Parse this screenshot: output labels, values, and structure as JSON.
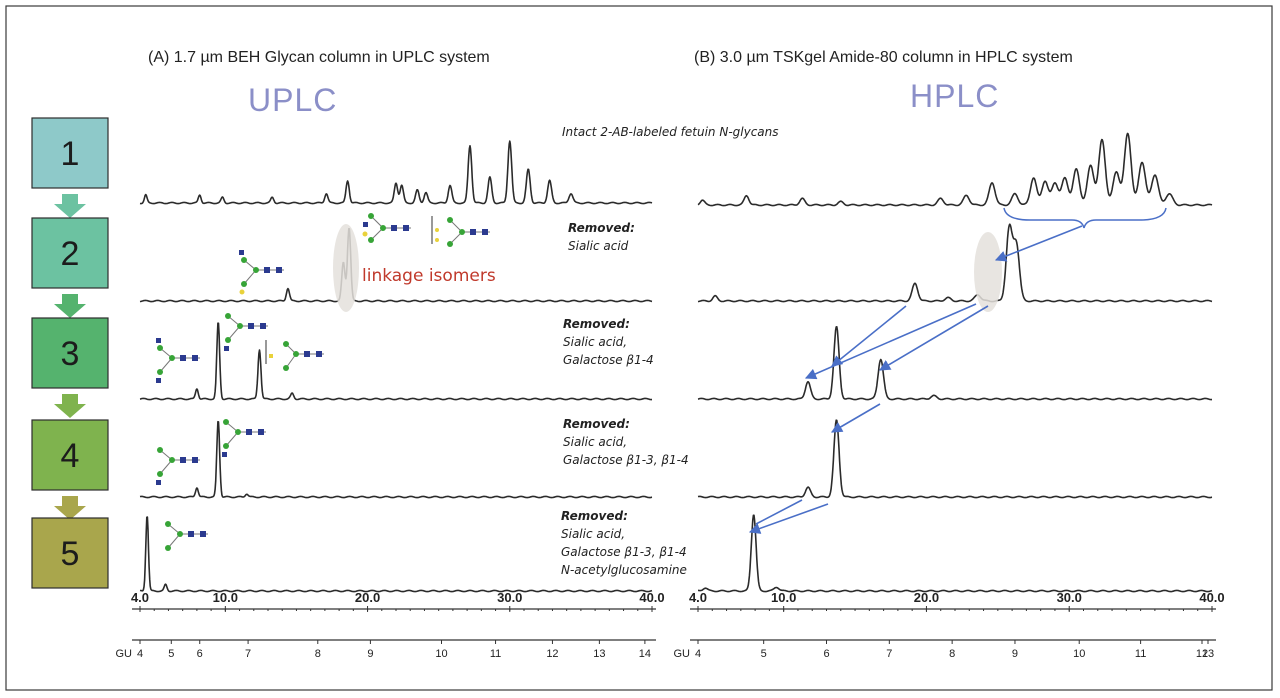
{
  "header": {
    "panel_a_title": "(A)  1.7 µm BEH Glycan column in UPLC system",
    "panel_b_title": "(B)  3.0 µm TSKgel Amide-80 column in HPLC system",
    "panel_a_label": "UPLC",
    "panel_b_label": "HPLC"
  },
  "steps": [
    {
      "number": "1",
      "color": "#8ec9c9"
    },
    {
      "number": "2",
      "color": "#6cc2a1"
    },
    {
      "number": "3",
      "color": "#55b36e"
    },
    {
      "number": "4",
      "color": "#7fb34e"
    },
    {
      "number": "5",
      "color": "#a9a64c"
    }
  ],
  "annotations": {
    "trace1": "Intact 2-AB-labeled fetuin N-glycans",
    "trace2_head": "Removed:",
    "trace2_lines": [
      "Sialic acid"
    ],
    "trace3_head": "Removed:",
    "trace3_lines": [
      "Sialic acid,",
      "Galactose β1-4"
    ],
    "trace4_head": "Removed:",
    "trace4_lines": [
      "Sialic acid,",
      "Galactose β1-3,  β1-4"
    ],
    "trace5_head": "Removed:",
    "trace5_lines": [
      "Sialic acid,",
      "Galactose β1-3,  β1-4",
      "N-acetylglucosamine"
    ],
    "linkage": "linkage isomers"
  },
  "chart_data": [
    {
      "type": "line",
      "title": "(A)  1.7 µm BEH Glycan column in UPLC system",
      "xlabel": "",
      "ylabel": "",
      "x_ticks": [
        4.0,
        10.0,
        20.0,
        30.0,
        40.0
      ],
      "x_tick_labels": [
        "4.0",
        "10.0",
        "20.0",
        "30.0",
        "40.0"
      ],
      "xlim": [
        4.0,
        40.0
      ],
      "gu_prefix": "GU",
      "gu_ticks": [
        4,
        5,
        6,
        7,
        8,
        9,
        10,
        11,
        12,
        13,
        14
      ],
      "gu_positions_min": [
        4.0,
        6.2,
        8.2,
        11.6,
        16.5,
        20.2,
        25.2,
        29.0,
        33.0,
        36.3,
        39.5
      ],
      "series": [
        {
          "peaks": [
            [
              4.4,
              0.1
            ],
            [
              8.2,
              0.1
            ],
            [
              9.8,
              0.07
            ],
            [
              13.3,
              0.07
            ],
            [
              17.1,
              0.12
            ],
            [
              18.6,
              0.28
            ],
            [
              22.0,
              0.25
            ],
            [
              22.4,
              0.22
            ],
            [
              23.5,
              0.16
            ],
            [
              24.1,
              0.13
            ],
            [
              25.8,
              0.22
            ],
            [
              27.2,
              0.72
            ],
            [
              28.6,
              0.32
            ],
            [
              30.0,
              0.78
            ],
            [
              31.3,
              0.42
            ],
            [
              32.8,
              0.28
            ],
            [
              34.3,
              0.12
            ]
          ]
        },
        {
          "peaks": [
            [
              14.4,
              0.16
            ],
            [
              18.3,
              0.48
            ],
            [
              18.7,
              0.92
            ]
          ]
        },
        {
          "peaks": [
            [
              8.0,
              0.13
            ],
            [
              9.5,
              0.96
            ],
            [
              12.4,
              0.62
            ],
            [
              14.7,
              0.07
            ]
          ]
        },
        {
          "peaks": [
            [
              8.0,
              0.12
            ],
            [
              9.5,
              0.96
            ],
            [
              11.5,
              0.04
            ]
          ]
        },
        {
          "peaks": [
            [
              4.5,
              0.95
            ],
            [
              5.8,
              0.08
            ]
          ]
        }
      ]
    },
    {
      "type": "line",
      "title": "(B)  3.0 µm TSKgel Amide-80 column in HPLC system",
      "xlabel": "",
      "ylabel": "",
      "x_ticks": [
        4.0,
        10.0,
        20.0,
        30.0,
        40.0
      ],
      "x_tick_labels": [
        "4.0",
        "10.0",
        "20.0",
        "30.0",
        "40.0"
      ],
      "xlim": [
        4.0,
        40.0
      ],
      "gu_prefix": "GU",
      "gu_ticks": [
        4,
        5,
        6,
        7,
        8,
        9,
        10,
        11,
        12,
        13
      ],
      "gu_positions_min": [
        4.0,
        8.6,
        13.0,
        17.4,
        21.8,
        26.2,
        30.7,
        35.0,
        39.3,
        43.6
      ],
      "series": [
        {
          "peaks": [
            [
              4.3,
              0.06
            ],
            [
              7.4,
              0.12
            ],
            [
              11.3,
              0.08
            ],
            [
              14.0,
              0.04
            ],
            [
              21.0,
              0.08
            ],
            [
              22.8,
              0.12
            ],
            [
              24.6,
              0.28
            ],
            [
              26.2,
              0.14
            ],
            [
              27.5,
              0.34
            ],
            [
              28.3,
              0.3
            ],
            [
              29.0,
              0.28
            ],
            [
              29.7,
              0.34
            ],
            [
              30.5,
              0.45
            ],
            [
              31.5,
              0.5
            ],
            [
              32.3,
              0.82
            ],
            [
              33.3,
              0.42
            ],
            [
              34.1,
              0.9
            ],
            [
              35.1,
              0.54
            ],
            [
              36.0,
              0.38
            ],
            [
              37.0,
              0.14
            ]
          ]
        },
        {
          "peaks": [
            [
              5.2,
              0.06
            ],
            [
              19.2,
              0.22
            ],
            [
              21.5,
              0.04
            ],
            [
              23.6,
              0.08
            ],
            [
              25.8,
              0.9
            ],
            [
              26.3,
              0.7
            ]
          ]
        },
        {
          "peaks": [
            [
              11.7,
              0.22
            ],
            [
              13.7,
              0.9
            ],
            [
              16.8,
              0.5
            ],
            [
              20.5,
              0.04
            ]
          ]
        },
        {
          "peaks": [
            [
              11.7,
              0.12
            ],
            [
              13.7,
              0.96
            ]
          ]
        },
        {
          "peaks": [
            [
              4.5,
              0.04
            ],
            [
              7.9,
              0.96
            ],
            [
              9.5,
              0.05
            ]
          ]
        }
      ]
    }
  ]
}
